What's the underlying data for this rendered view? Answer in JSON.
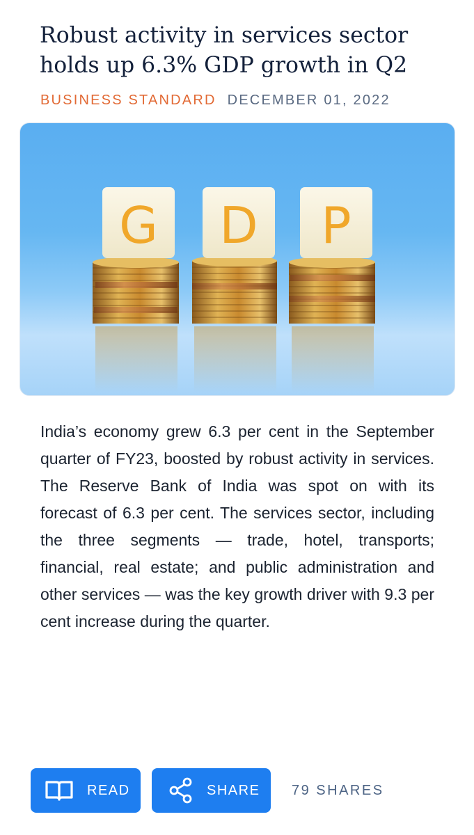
{
  "article": {
    "headline": "Robust activity in services sector holds up 6.3% GDP growth in Q2",
    "source": "BUSINESS STANDARD",
    "date": "DECEMBER 01, 2022",
    "hero_image": {
      "letters": [
        "G",
        "D",
        "P"
      ],
      "description_icon": "gdp-coins-image"
    },
    "body": "India’s economy grew 6.3 per cent in the September quarter of FY23, boosted by robust activity in services. The Reserve Bank of India was spot on with its forecast of 6.3 per cent. The services sector, including the three segments — trade, hotel, transports; financial, real estate; and public administration and other services — was the key growth driver with 9.3 per cent increase during the quarter."
  },
  "actions": {
    "read_label": "READ",
    "read_icon": "book-icon",
    "share_label": "SHARE",
    "share_icon": "share-icon",
    "shares_count": "79 SHARES"
  },
  "colors": {
    "source": "#e26a35",
    "date": "#5a6a82",
    "button": "#1e7ef0",
    "headline": "#13203a"
  }
}
